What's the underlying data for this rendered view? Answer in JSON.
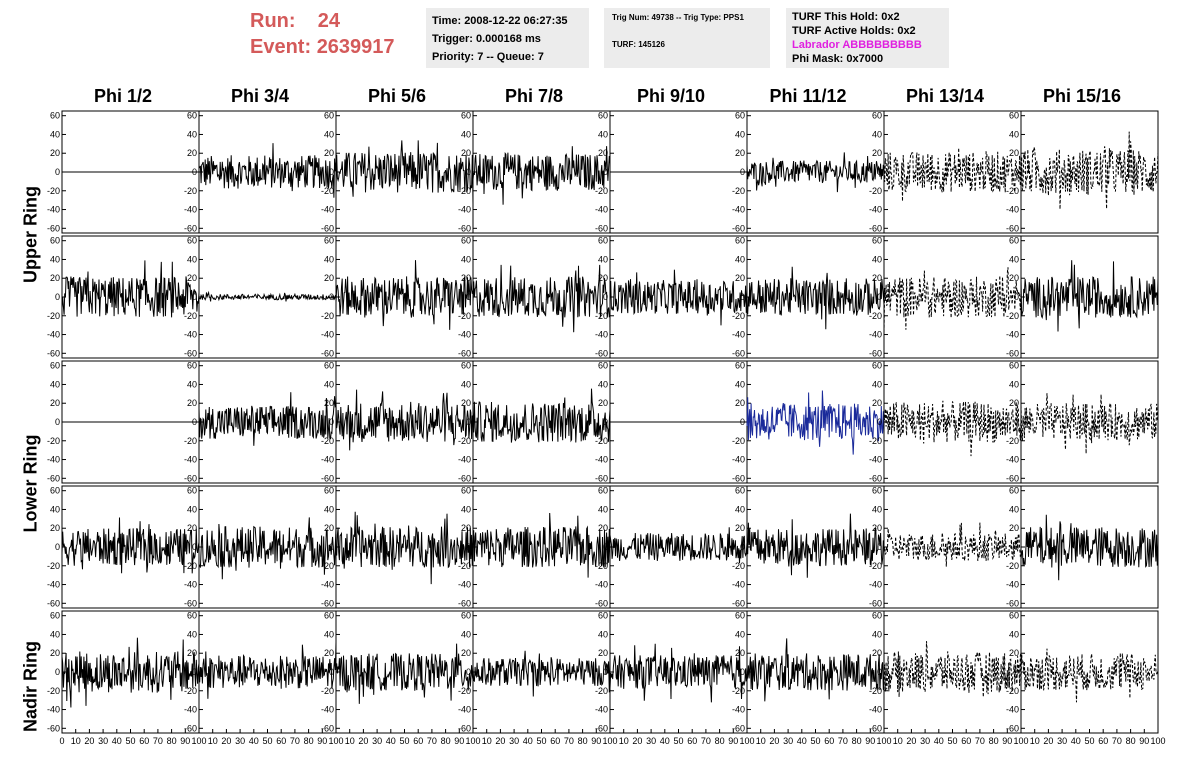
{
  "header": {
    "run_label": "Run:",
    "run_value": "24",
    "event_label": "Event:",
    "event_value": "2639917"
  },
  "time_box": {
    "line1": "Time: 2008-12-22 06:27:35",
    "line2": "Trigger: 0.000168 ms",
    "line3": "Priority: 7 -- Queue: 7"
  },
  "trig_box": {
    "line1": "Trig Num: 49738 -- Trig Type: PPS1",
    "line2": "TURF: 145126"
  },
  "turf_box": {
    "line1": "TURF This Hold: 0x2",
    "line2": "TURF Active Holds: 0x2",
    "line3": "Labrador ABBBBBBBBB",
    "line4": "Phi Mask: 0x7000"
  },
  "colors": {
    "header_red": "#d45a5a",
    "labrador_magenta": "#e020e0",
    "trace_black": "#000000",
    "trace_blue": "#1a2a9a",
    "box_grey": "#ececec"
  },
  "columns": [
    "Phi 1/2",
    "Phi 3/4",
    "Phi 5/6",
    "Phi 7/8",
    "Phi 9/10",
    "Phi 11/12",
    "Phi 13/14",
    "Phi 15/16"
  ],
  "rings": [
    "Upper Ring",
    "Lower Ring",
    "Nadir Ring"
  ],
  "chart_data": {
    "type": "line",
    "title": "",
    "xlim": [
      0,
      100
    ],
    "ylim": [
      -65,
      65
    ],
    "x_ticks": [
      "0",
      "10",
      "20",
      "30",
      "40",
      "50",
      "60",
      "70",
      "80",
      "90",
      "100"
    ],
    "y_ticks": [
      60,
      40,
      20,
      0,
      -20,
      -40,
      -60
    ],
    "y_tick_labels": [
      "60",
      "40",
      "20",
      "0",
      "-20",
      "-40",
      "-60"
    ],
    "panel_rows": 5,
    "panel_cols": 8,
    "styles": [
      "solid",
      "dashed",
      "blue"
    ],
    "panel_style": [
      [
        0,
        0,
        0,
        0,
        0,
        0,
        1,
        1
      ],
      [
        0,
        0,
        0,
        0,
        0,
        0,
        1,
        0
      ],
      [
        0,
        0,
        0,
        0,
        0,
        2,
        1,
        1
      ],
      [
        0,
        0,
        0,
        0,
        0,
        0,
        1,
        0
      ],
      [
        0,
        0,
        0,
        0,
        0,
        0,
        1,
        1
      ]
    ],
    "panel_amplitude": [
      [
        0,
        18,
        22,
        20,
        0,
        12,
        22,
        25
      ],
      [
        22,
        3,
        22,
        22,
        18,
        20,
        22,
        22
      ],
      [
        0,
        18,
        22,
        22,
        0,
        20,
        22,
        20
      ],
      [
        20,
        22,
        22,
        22,
        15,
        20,
        15,
        22
      ],
      [
        22,
        18,
        20,
        15,
        18,
        20,
        22,
        20
      ]
    ],
    "flat_panels_note": "amplitude 0 means flat line at 0"
  }
}
